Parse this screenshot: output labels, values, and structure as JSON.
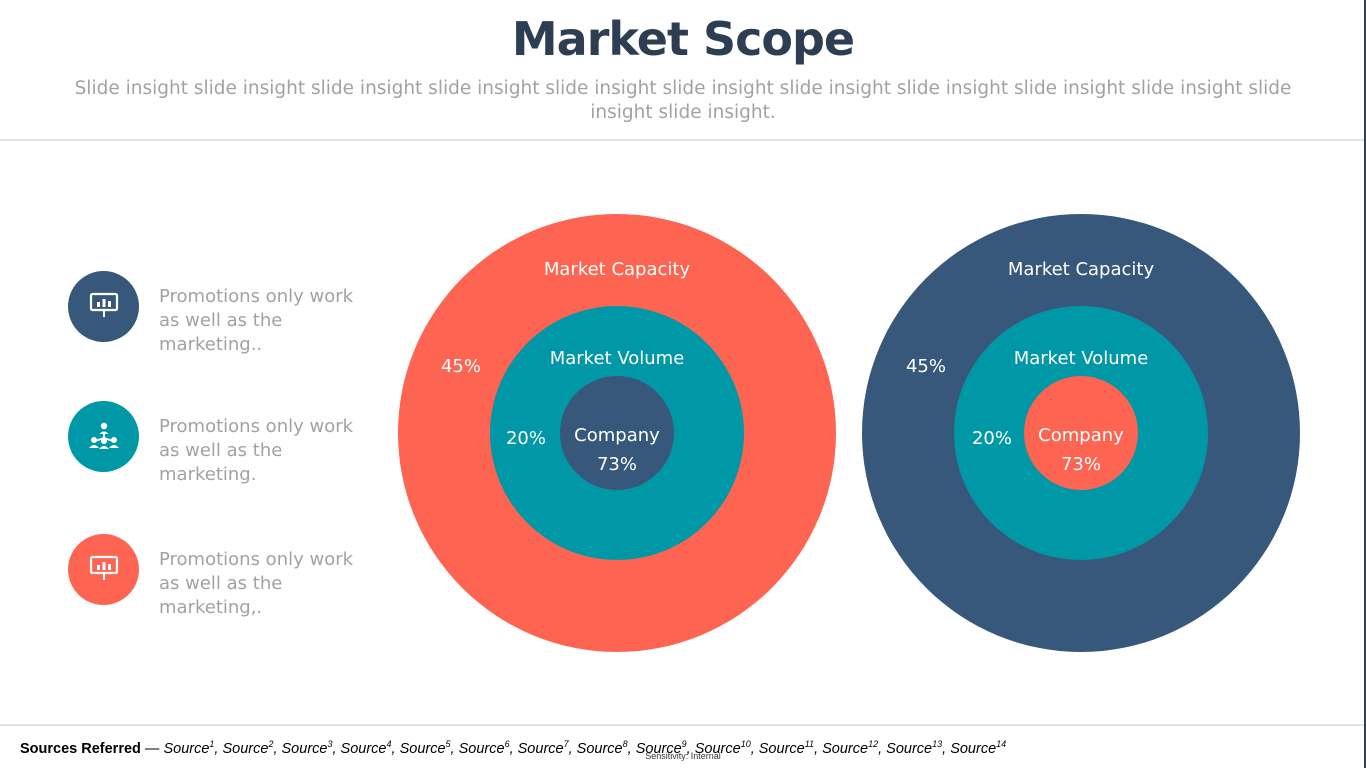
{
  "title": "Market Scope",
  "subtitle": "Slide insight slide insight slide insight slide insight slide insight slide insight slide insight slide insight slide insight slide insight slide insight slide insight.",
  "colors": {
    "navy": "#37587a",
    "teal": "#0097a7",
    "coral": "#fd6552",
    "title": "#2e3e52",
    "muted": "#a2a2a2"
  },
  "legend": [
    {
      "icon": "presentation-chart-icon",
      "color": "#37587a",
      "text": "Promotions only work as well as the marketing.."
    },
    {
      "icon": "team-hierarchy-icon",
      "color": "#0097a7",
      "text": "Promotions only work as well as the marketing."
    },
    {
      "icon": "presentation-chart-icon",
      "color": "#fd6552",
      "text": "Promotions only work as well as the marketing,."
    }
  ],
  "diagrams": [
    {
      "rings": [
        {
          "label": "Market Capacity",
          "percent": "45%",
          "color": "#fd6552"
        },
        {
          "label": "Market Volume",
          "percent": "20%",
          "color": "#0097a7"
        },
        {
          "label": "Company",
          "percent": "73%",
          "color": "#37587a"
        }
      ]
    },
    {
      "rings": [
        {
          "label": "Market Capacity",
          "percent": "45%",
          "color": "#37587a"
        },
        {
          "label": "Market Volume",
          "percent": "20%",
          "color": "#0097a7"
        },
        {
          "label": "Company",
          "percent": "73%",
          "color": "#fd6552"
        }
      ]
    }
  ],
  "footer": {
    "sources_label": "Sources Referred",
    "sources_sep": " — ",
    "sources": [
      {
        "name": "Source",
        "sup": "1"
      },
      {
        "name": "Source",
        "sup": "2"
      },
      {
        "name": "Source",
        "sup": "3"
      },
      {
        "name": "Source",
        "sup": "4"
      },
      {
        "name": "Source",
        "sup": "5"
      },
      {
        "name": "Source",
        "sup": "6"
      },
      {
        "name": "Source",
        "sup": "7"
      },
      {
        "name": "Source",
        "sup": "8"
      },
      {
        "name": "Source",
        "sup": "9"
      },
      {
        "name": "Source",
        "sup": "10"
      },
      {
        "name": "Source",
        "sup": "11"
      },
      {
        "name": "Source",
        "sup": "12"
      },
      {
        "name": "Source",
        "sup": "13"
      },
      {
        "name": "Source",
        "sup": "14"
      }
    ],
    "sensitivity": "Sensitivity: Internal"
  }
}
